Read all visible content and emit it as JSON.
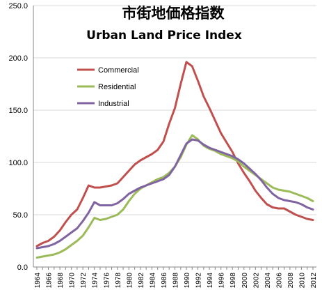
{
  "chart_data": {
    "type": "line",
    "title": "市街地価格指数",
    "subtitle": "Urban Land Price Index",
    "xlabel": "",
    "ylabel": "",
    "ylim": [
      0,
      250
    ],
    "yticks": [
      "0.0",
      "50.0",
      "100.0",
      "150.0",
      "200.0",
      "250.0"
    ],
    "grid": true,
    "legend_position": "top-left",
    "x": [
      1964,
      1965,
      1966,
      1967,
      1968,
      1969,
      1970,
      1971,
      1972,
      1973,
      1974,
      1975,
      1976,
      1977,
      1978,
      1979,
      1980,
      1981,
      1982,
      1983,
      1984,
      1985,
      1986,
      1987,
      1988,
      1989,
      1990,
      1991,
      1992,
      1993,
      1994,
      1995,
      1996,
      1997,
      1998,
      1999,
      2000,
      2001,
      2002,
      2003,
      2004,
      2005,
      2006,
      2007,
      2008,
      2009,
      2010,
      2011,
      2012
    ],
    "xticks": [
      "1964",
      "1966",
      "1968",
      "1970",
      "1972",
      "1974",
      "1976",
      "1978",
      "1980",
      "1982",
      "1984",
      "1986",
      "1988",
      "1990",
      "1992",
      "1994",
      "1996",
      "1998",
      "2000",
      "2002",
      "2004",
      "2006",
      "2008",
      "2010",
      "2012"
    ],
    "series": [
      {
        "name": "Commercial",
        "color": "#c0504d",
        "values": [
          20,
          23,
          25,
          29,
          35,
          43,
          50,
          55,
          66,
          78,
          76,
          76,
          77,
          78,
          80,
          86,
          92,
          98,
          102,
          105,
          108,
          112,
          120,
          137,
          152,
          175,
          196,
          192,
          178,
          163,
          152,
          140,
          128,
          119,
          110,
          99,
          90,
          82,
          73,
          66,
          60,
          57,
          56,
          56,
          53,
          50,
          48,
          46,
          45
        ]
      },
      {
        "name": "Residential",
        "color": "#9bbb59",
        "values": [
          9,
          10,
          11,
          12,
          14,
          17,
          21,
          25,
          30,
          38,
          47,
          45,
          46,
          48,
          50,
          55,
          63,
          70,
          75,
          78,
          81,
          84,
          86,
          90,
          96,
          105,
          117,
          126,
          122,
          116,
          113,
          111,
          108,
          106,
          104,
          101,
          96,
          92,
          88,
          84,
          80,
          76,
          74,
          73,
          72,
          70,
          68,
          66,
          63
        ]
      },
      {
        "name": "Industrial",
        "color": "#8064a2",
        "values": [
          18,
          19,
          20,
          22,
          25,
          29,
          33,
          37,
          44,
          52,
          62,
          59,
          59,
          59,
          61,
          65,
          70,
          73,
          76,
          78,
          80,
          82,
          84,
          88,
          96,
          107,
          118,
          122,
          121,
          117,
          114,
          112,
          110,
          108,
          106,
          103,
          99,
          94,
          89,
          83,
          76,
          70,
          66,
          64,
          63,
          62,
          60,
          57,
          55
        ]
      }
    ]
  }
}
